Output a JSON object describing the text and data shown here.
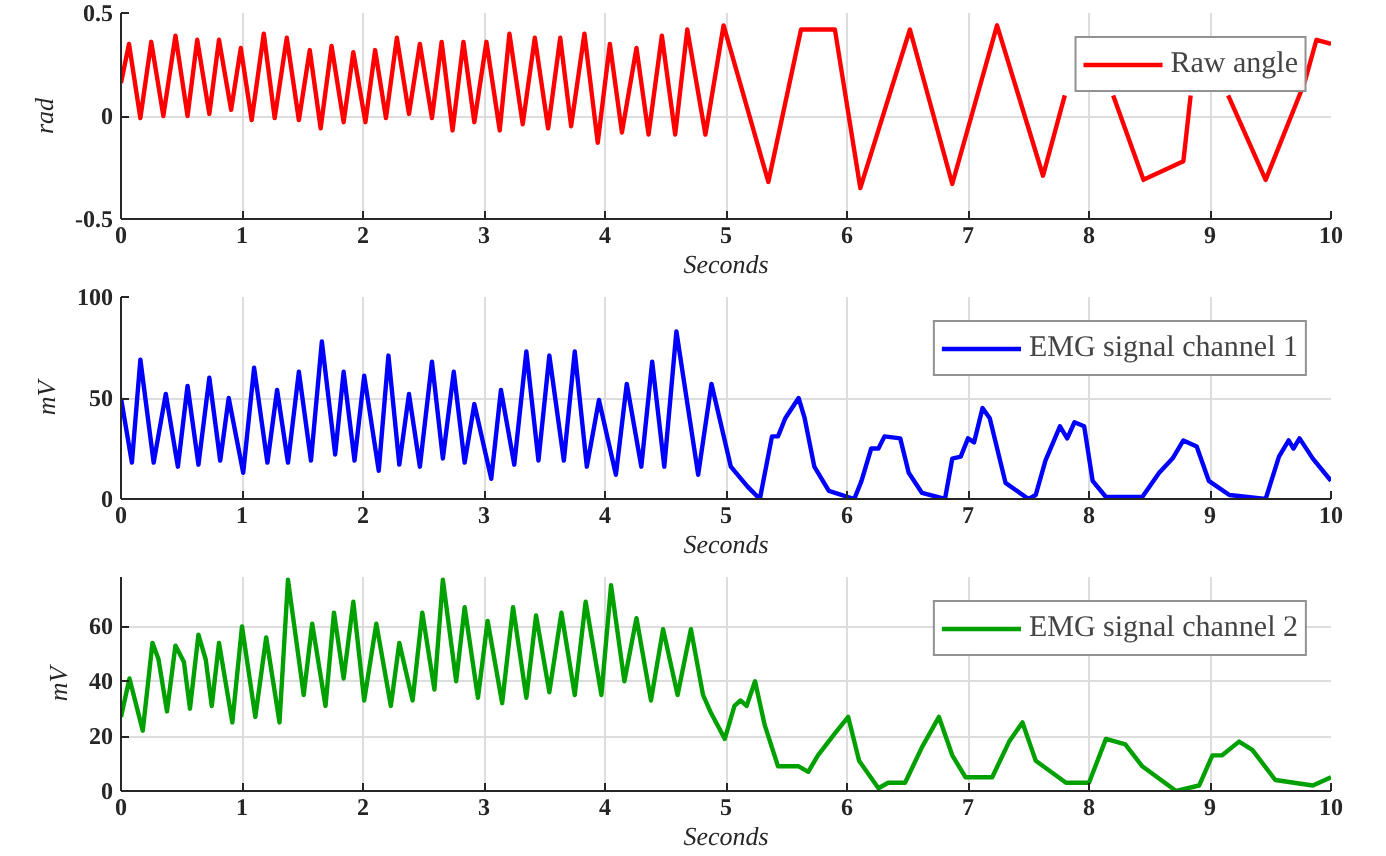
{
  "chart_data": [
    {
      "type": "line",
      "ylabel": "rad",
      "xlabel": "Seconds",
      "xlim": [
        0,
        10
      ],
      "xticks": [
        0,
        1,
        2,
        3,
        4,
        5,
        6,
        7,
        8,
        9,
        10
      ],
      "ylim": [
        -0.5,
        0.5
      ],
      "yticks": [
        0.5,
        0,
        -0.5
      ],
      "grid": true,
      "legend": "top right",
      "line_style": "solid",
      "x": [
        0,
        0.066,
        0.16,
        0.25,
        0.35,
        0.45,
        0.55,
        0.63,
        0.73,
        0.81,
        0.91,
        0.99,
        1.08,
        1.18,
        1.27,
        1.37,
        1.47,
        1.56,
        1.65,
        1.74,
        1.84,
        1.92,
        2.02,
        2.1,
        2.19,
        2.28,
        2.38,
        2.47,
        2.57,
        2.65,
        2.74,
        2.83,
        2.92,
        3.02,
        3.13,
        3.21,
        3.32,
        3.42,
        3.53,
        3.63,
        3.72,
        3.83,
        3.94,
        4.04,
        4.14,
        4.26,
        4.36,
        4.47,
        4.58,
        4.68,
        4.83,
        4.98,
        5.35,
        5.62,
        5.9,
        6.11,
        6.52,
        6.87,
        7.24,
        7.62,
        7.8,
        8.0,
        8.2,
        8.45,
        8.78,
        8.84,
        9.0,
        9.15,
        9.46,
        9.78,
        9.88,
        10
      ],
      "series": [
        {
          "name": "Raw angle",
          "color": "#ff0000",
          "values": [
            0.16,
            0.35,
            -0.01,
            0.36,
            0,
            0.39,
            0,
            0.37,
            0.01,
            0.37,
            0.03,
            0.33,
            -0.02,
            0.4,
            -0.01,
            0.38,
            -0.02,
            0.32,
            -0.06,
            0.34,
            -0.03,
            0.31,
            -0.03,
            0.32,
            -0.01,
            0.38,
            0.01,
            0.35,
            -0.01,
            0.36,
            -0.07,
            0.36,
            -0.03,
            0.36,
            -0.07,
            0.4,
            -0.04,
            0.38,
            -0.06,
            0.38,
            -0.05,
            0.4,
            -0.13,
            0.35,
            -0.08,
            0.33,
            -0.09,
            0.39,
            -0.09,
            0.42,
            -0.09,
            0.44,
            -0.32,
            0.42,
            0.42,
            -0.35,
            0.42,
            -0.33,
            0.44,
            -0.29,
            0.1,
            null,
            0.1,
            -0.31,
            -0.22,
            0.1,
            null,
            0.1,
            -0.31,
            0.16,
            0.37,
            0.35
          ]
        }
      ]
    },
    {
      "type": "line",
      "ylabel": "mV",
      "xlabel": "Seconds",
      "xlim": [
        0,
        10
      ],
      "xticks": [
        0,
        1,
        2,
        3,
        4,
        5,
        6,
        7,
        8,
        9,
        10
      ],
      "ylim": [
        0,
        100
      ],
      "yticks": [
        0,
        50,
        100
      ],
      "grid": true,
      "legend": "top right",
      "line_style": "solid",
      "x": [
        0,
        0.09,
        0.16,
        0.27,
        0.37,
        0.47,
        0.55,
        0.64,
        0.73,
        0.82,
        0.89,
        1.01,
        1.1,
        1.21,
        1.29,
        1.38,
        1.47,
        1.57,
        1.66,
        1.77,
        1.84,
        1.93,
        2.01,
        2.13,
        2.21,
        2.3,
        2.38,
        2.47,
        2.57,
        2.66,
        2.75,
        2.84,
        2.92,
        3.06,
        3.14,
        3.25,
        3.35,
        3.45,
        3.54,
        3.66,
        3.75,
        3.85,
        3.95,
        4.09,
        4.18,
        4.3,
        4.39,
        4.49,
        4.59,
        4.77,
        4.88,
        5.04,
        5.18,
        5.28,
        5.38,
        5.43,
        5.49,
        5.6,
        5.65,
        5.73,
        5.85,
        6.06,
        6.12,
        6.2,
        6.26,
        6.31,
        6.44,
        6.51,
        6.62,
        6.81,
        6.87,
        6.94,
        7.0,
        7.05,
        7.12,
        7.18,
        7.31,
        7.5,
        7.56,
        7.64,
        7.76,
        7.82,
        7.88,
        7.96,
        8.03,
        8.14,
        8.44,
        8.58,
        8.69,
        8.78,
        8.89,
        8.99,
        9.16,
        9.46,
        9.57,
        9.65,
        9.69,
        9.74,
        9.85,
        10
      ],
      "series": [
        {
          "name": "EMG signal channel 1",
          "color": "#0000ff",
          "values": [
            50,
            18,
            69,
            18,
            52,
            16,
            56,
            17,
            60,
            19,
            50,
            13,
            65,
            18,
            54,
            18,
            63,
            19,
            78,
            22,
            63,
            19,
            61,
            14,
            71,
            17,
            52,
            16,
            68,
            20,
            63,
            18,
            47,
            10,
            54,
            17,
            73,
            19,
            71,
            19,
            73,
            16,
            49,
            12,
            57,
            16,
            68,
            16,
            83,
            12,
            57,
            16,
            6,
            0,
            31,
            31,
            40,
            50,
            40,
            16,
            4,
            0,
            9,
            25,
            25,
            31,
            30,
            13,
            3,
            0,
            20,
            21,
            30,
            28,
            45,
            40,
            8,
            0,
            2,
            19,
            36,
            30,
            38,
            36,
            9,
            1,
            1,
            13,
            20,
            29,
            26,
            9,
            2,
            0,
            21,
            29,
            25,
            30,
            20,
            9
          ]
        }
      ]
    },
    {
      "type": "line",
      "ylabel": "mV",
      "xlabel": "Seconds",
      "xlim": [
        0,
        10
      ],
      "xticks": [
        0,
        1,
        2,
        3,
        4,
        5,
        6,
        7,
        8,
        9,
        10
      ],
      "ylim": [
        0,
        78
      ],
      "yticks": [
        0,
        20,
        40,
        60
      ],
      "grid": true,
      "legend": "top right",
      "line_style": "solid",
      "x": [
        0,
        0.07,
        0.18,
        0.26,
        0.31,
        0.38,
        0.45,
        0.52,
        0.57,
        0.64,
        0.7,
        0.75,
        0.81,
        0.92,
        1.0,
        1.11,
        1.2,
        1.31,
        1.38,
        1.51,
        1.58,
        1.69,
        1.76,
        1.84,
        1.92,
        2.01,
        2.11,
        2.23,
        2.3,
        2.41,
        2.49,
        2.59,
        2.66,
        2.77,
        2.84,
        2.95,
        3.03,
        3.15,
        3.24,
        3.35,
        3.43,
        3.54,
        3.64,
        3.75,
        3.84,
        3.97,
        4.05,
        4.16,
        4.26,
        4.38,
        4.48,
        4.6,
        4.71,
        4.81,
        4.87,
        4.99,
        5.07,
        5.12,
        5.17,
        5.24,
        5.32,
        5.43,
        5.6,
        5.68,
        5.76,
        5.9,
        6.01,
        6.1,
        6.26,
        6.34,
        6.48,
        6.62,
        6.76,
        6.87,
        6.98,
        7.2,
        7.34,
        7.45,
        7.56,
        7.81,
        8.0,
        8.14,
        8.3,
        8.44,
        8.72,
        8.91,
        9.02,
        9.1,
        9.24,
        9.35,
        9.54,
        9.85,
        10
      ],
      "series": [
        {
          "name": "EMG signal channel 2",
          "color": "#00a000",
          "values": [
            27,
            41,
            22,
            54,
            48,
            29,
            53,
            47,
            30,
            57,
            48,
            31,
            54,
            25,
            60,
            27,
            56,
            25,
            77,
            35,
            61,
            31,
            65,
            41,
            69,
            33,
            61,
            31,
            54,
            33,
            65,
            37,
            77,
            40,
            67,
            34,
            62,
            32,
            67,
            34,
            64,
            36,
            65,
            35,
            69,
            35,
            75,
            40,
            63,
            33,
            59,
            35,
            59,
            35,
            29,
            19,
            31,
            33,
            31,
            40,
            24,
            9,
            9,
            7,
            13,
            21,
            27,
            11,
            1,
            3,
            3,
            16,
            27,
            13,
            5,
            5,
            18,
            25,
            11,
            3,
            3,
            19,
            17,
            9,
            0,
            2,
            13,
            13,
            18,
            15,
            4,
            2,
            5
          ]
        }
      ]
    }
  ]
}
